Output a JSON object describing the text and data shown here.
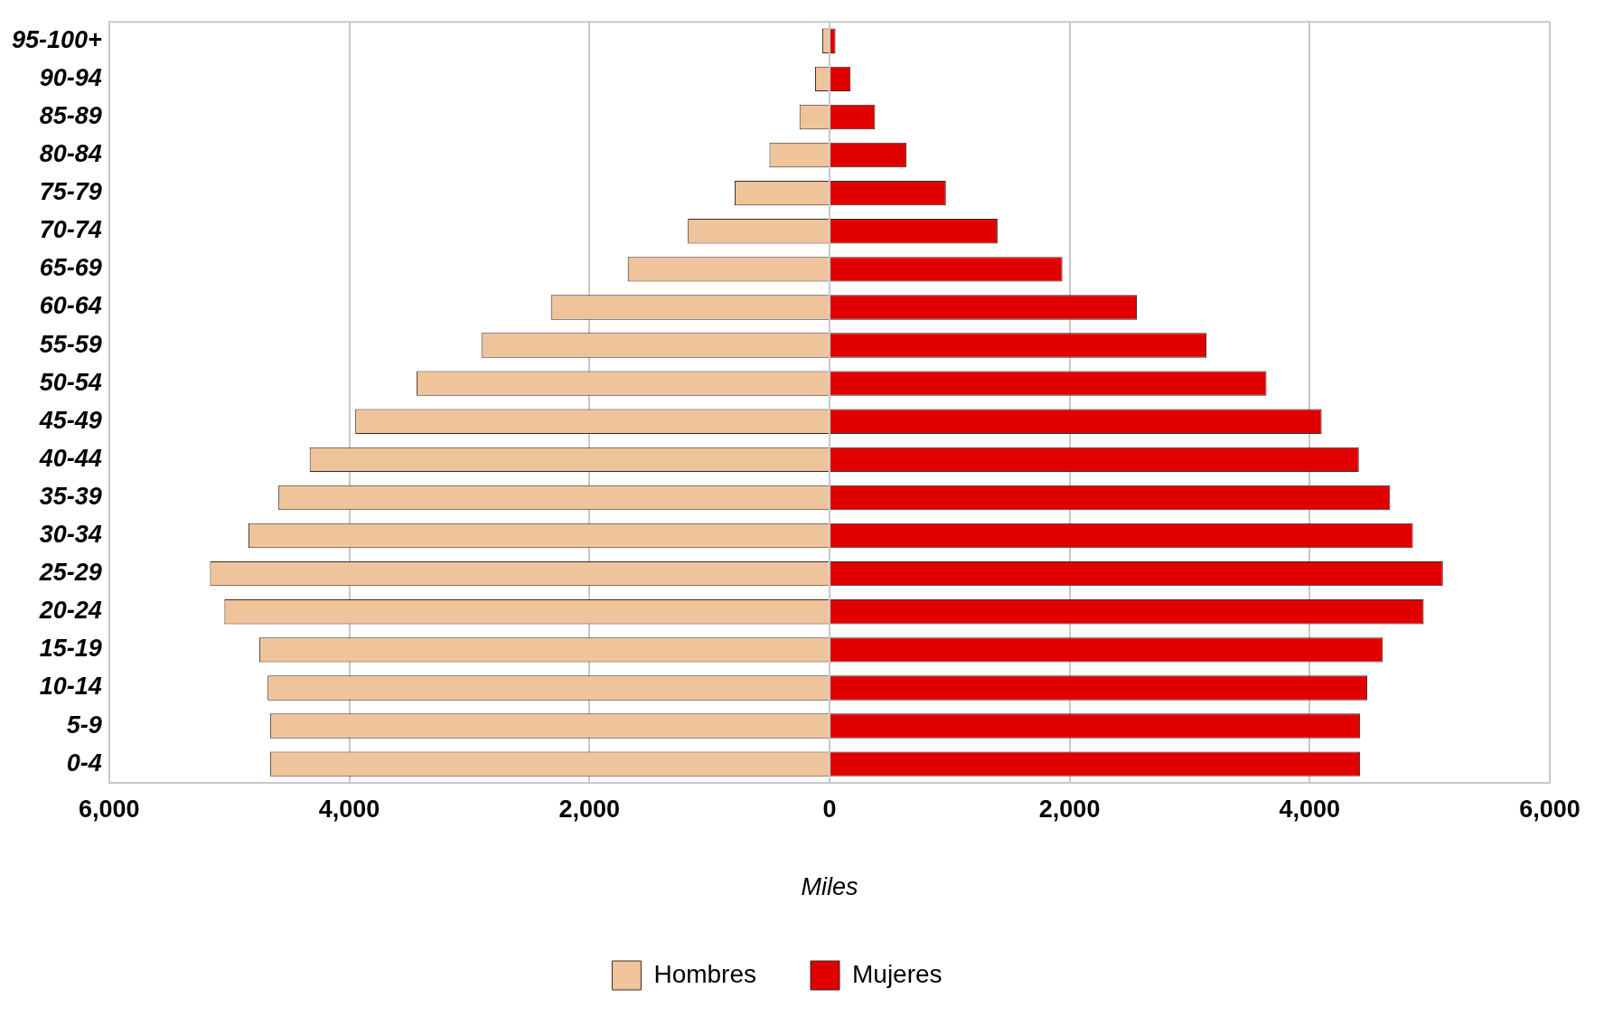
{
  "chart_data": {
    "type": "bar",
    "orientation": "horizontal",
    "stacked": true,
    "categories": [
      "95-100+",
      "90-94",
      "85-89",
      "80-84",
      "75-79",
      "70-74",
      "65-69",
      "60-64",
      "55-59",
      "50-54",
      "45-49",
      "40-44",
      "35-39",
      "30-34",
      "25-29",
      "20-24",
      "15-19",
      "10-14",
      "5-9",
      "0-4"
    ],
    "series": [
      {
        "name": "Hombres",
        "color": "#f0c49a",
        "values": [
          -60,
          -120,
          -250,
          -500,
          -790,
          -1180,
          -1680,
          -2320,
          -2900,
          -3440,
          -3950,
          -4330,
          -4590,
          -4840,
          -5160,
          -5040,
          -4750,
          -4680,
          -4660,
          -4660
        ]
      },
      {
        "name": "Mujeres",
        "color": "#e00000",
        "values": [
          50,
          175,
          380,
          640,
          970,
          1400,
          1940,
          2560,
          3140,
          3640,
          4100,
          4410,
          4670,
          4860,
          5110,
          4950,
          4610,
          4480,
          4420,
          4420
        ]
      }
    ],
    "xlabel": "Miles",
    "xlim": [
      -6000,
      6000
    ],
    "xticks": [
      {
        "value": -6000,
        "label": "6,000"
      },
      {
        "value": -4000,
        "label": "4,000"
      },
      {
        "value": -2000,
        "label": "2,000"
      },
      0,
      {
        "value": 2000,
        "label": "2,000"
      },
      {
        "value": 4000,
        "label": "4,000"
      },
      {
        "value": 6000,
        "label": "6,000"
      }
    ],
    "grid": "x",
    "legend": "bottom"
  }
}
